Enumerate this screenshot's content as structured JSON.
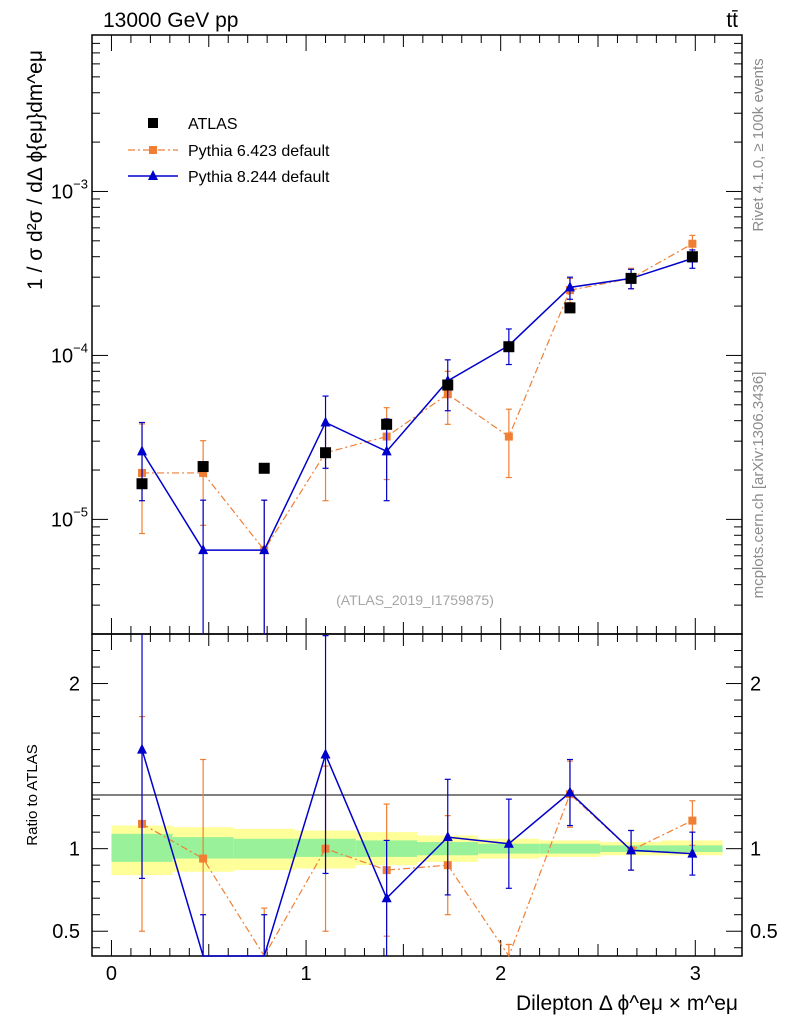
{
  "header": {
    "energy": "13000 GeV pp",
    "process": "tt̄",
    "analysis": "(ATLAS_2019_I1759875)",
    "rivet": "Rivet 4.1.0, ≥ 100k events",
    "source": "mcplots.cern.ch [arXiv:1306.3436]"
  },
  "chart_data": [
    {
      "type": "scatter",
      "panel": "main",
      "ylabel": "1 / σ  d²σ / dΔ ϕ{eμ}dm^eμ",
      "xlabel": "Dilepton Δ ϕ^eμ × m^eμ",
      "yscale": "log",
      "xlim": [
        -0.1,
        3.24
      ],
      "ylim": [
        2e-06,
        0.009
      ],
      "y_tick_labels": [
        {
          "value": 1e-05,
          "mantissa": "10",
          "exponent": "−5"
        },
        {
          "value": 0.0001,
          "mantissa": "10",
          "exponent": "−4"
        },
        {
          "value": 0.001,
          "mantissa": "10",
          "exponent": "−3"
        }
      ],
      "legend": [
        "ATLAS",
        "Pythia 6.423 default",
        "Pythia 8.244 default"
      ],
      "x": [
        0.157,
        0.471,
        0.785,
        1.1,
        1.414,
        1.728,
        2.042,
        2.356,
        2.67,
        2.985
      ],
      "series": [
        {
          "name": "ATLAS",
          "color": "#000000",
          "marker": "square",
          "values": [
            1.65e-05,
            2.1e-05,
            2.05e-05,
            2.55e-05,
            3.8e-05,
            6.6e-05,
            0.000113,
            0.000195,
            0.000295,
            0.0004
          ]
        },
        {
          "name": "Pythia 6.423 default",
          "color": "#f07f34",
          "marker": "square",
          "line": "dashdot",
          "values": [
            1.92e-05,
            1.92e-05,
            6.5e-06,
            2.55e-05,
            3.2e-05,
            5.8e-05,
            3.2e-05,
            0.00025,
            0.000295,
            0.00048
          ],
          "err_low": [
            1.1e-05,
            1e-05,
            6.5e-06,
            1.25e-05,
            1.45e-05,
            2e-05,
            1.4e-05,
            4e-05,
            4e-05,
            6e-05
          ],
          "err_high": [
            1.9e-05,
            1.1e-05,
            6.6e-06,
            1.3e-05,
            1.6e-05,
            2.2e-05,
            1.5e-05,
            4.5e-05,
            4.5e-05,
            6e-05
          ]
        },
        {
          "name": "Pythia 8.244 default",
          "color": "#0000cc",
          "marker": "triangle",
          "line": "solid",
          "values": [
            2.6e-05,
            6.5e-06,
            6.5e-06,
            3.9e-05,
            2.6e-05,
            7e-05,
            0.000115,
            0.00026,
            0.000295,
            0.00039
          ],
          "err_low": [
            1.3e-05,
            6.5e-06,
            6.5e-06,
            1.85e-05,
            1.3e-05,
            2.4e-05,
            2.7e-05,
            4e-05,
            4e-05,
            5e-05
          ],
          "err_high": [
            1.3e-05,
            6.6e-06,
            6.6e-06,
            1.75e-05,
            1.5e-05,
            2.4e-05,
            3e-05,
            4e-05,
            4e-05,
            5e-05
          ]
        }
      ]
    },
    {
      "type": "scatter",
      "panel": "ratio",
      "ylabel": "Ratio to ATLAS",
      "ylim": [
        0.35,
        2.3
      ],
      "y_ticks": [
        0.5,
        1,
        2
      ],
      "y_tick_labels": [
        "0.5",
        "1",
        "2"
      ],
      "x_ticks": [
        0,
        1,
        2,
        3
      ],
      "x_tick_labels": [
        "0",
        "1",
        "2",
        "3"
      ],
      "bands": {
        "edges": [
          0,
          0.314,
          0.628,
          0.942,
          1.256,
          1.57,
          1.884,
          2.198,
          2.512,
          2.826,
          3.14
        ],
        "inner_color": "#99f299",
        "outer_color": "#ffff99",
        "inner": [
          [
            0.92,
            1.09
          ],
          [
            0.94,
            1.07
          ],
          [
            0.94,
            1.06
          ],
          [
            0.95,
            1.06
          ],
          [
            0.95,
            1.05
          ],
          [
            0.96,
            1.04
          ],
          [
            0.97,
            1.03
          ],
          [
            0.97,
            1.03
          ],
          [
            0.98,
            1.02
          ],
          [
            0.98,
            1.02
          ]
        ],
        "outer": [
          [
            0.84,
            1.14
          ],
          [
            0.86,
            1.13
          ],
          [
            0.87,
            1.12
          ],
          [
            0.88,
            1.11
          ],
          [
            0.9,
            1.1
          ],
          [
            0.92,
            1.08
          ],
          [
            0.94,
            1.06
          ],
          [
            0.95,
            1.05
          ],
          [
            0.96,
            1.04
          ],
          [
            0.96,
            1.05
          ]
        ]
      },
      "series": [
        {
          "name": "Pythia 6.423 default",
          "color": "#f07f34",
          "values": [
            1.15,
            0.94,
            0.32,
            1.0,
            0.87,
            0.9,
            0.28,
            1.33,
            0.99,
            1.17
          ],
          "err_low": [
            0.65,
            0.6,
            0.32,
            0.5,
            0.4,
            0.3,
            0.14,
            0.2,
            0.12,
            0.15
          ],
          "err_high": [
            0.65,
            0.6,
            0.32,
            0.5,
            0.4,
            0.3,
            0.14,
            0.2,
            0.12,
            0.12
          ]
        },
        {
          "name": "Pythia 8.244 default",
          "color": "#0000cc",
          "values": [
            1.6,
            0.3,
            0.3,
            1.57,
            0.7,
            1.07,
            1.03,
            1.34,
            0.99,
            0.97
          ],
          "err_low": [
            0.78,
            0.3,
            0.3,
            0.72,
            0.35,
            0.35,
            0.27,
            0.2,
            0.12,
            0.13
          ],
          "err_high": [
            0.78,
            0.3,
            0.3,
            0.72,
            0.35,
            0.35,
            0.27,
            0.2,
            0.12,
            0.13
          ]
        }
      ]
    }
  ]
}
